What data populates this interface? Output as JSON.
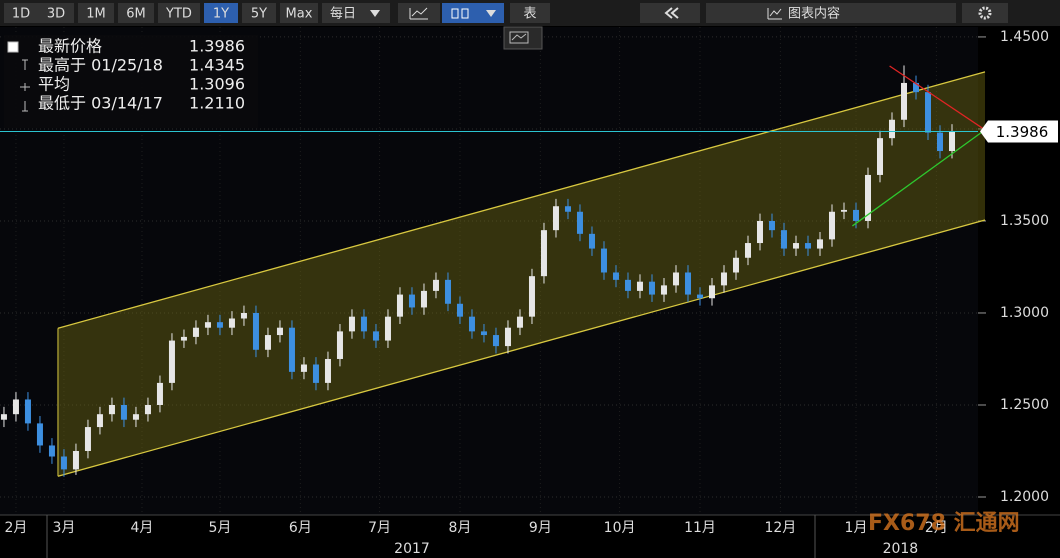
{
  "toolbar": {
    "ranges": [
      "1D",
      "3D",
      "1M",
      "6M",
      "YTD",
      "1Y",
      "5Y",
      "Max"
    ],
    "selected_range": 5,
    "frequency": "每日",
    "table": "表",
    "chart_content": "图表内容"
  },
  "legend": [
    {
      "label": "最新价格",
      "value": 1.3986
    },
    {
      "label": "最高于 01/25/18",
      "value": 1.4345
    },
    {
      "label": "平均",
      "value": 1.3096
    },
    {
      "label": "最低于 03/14/17",
      "value": 1.211,
      "value_label": "1.2110"
    }
  ],
  "watermark": "FX678 汇通网",
  "chart_data": {
    "type": "candlestick",
    "up_color": "#e6e6e6",
    "down_color": "#3d8fe0",
    "grid": true,
    "xlim": [
      -0.33,
      81.75
    ],
    "xticks": [
      {
        "value": 1,
        "label": "2月"
      },
      {
        "value": 5,
        "label": "3月"
      },
      {
        "value": 11.5,
        "label": "4月"
      },
      {
        "value": 18,
        "label": "5月"
      },
      {
        "value": 24.7,
        "label": "6月"
      },
      {
        "value": 31.3,
        "label": "7月"
      },
      {
        "value": 38,
        "label": "8月"
      },
      {
        "value": 44.7,
        "label": "9月"
      },
      {
        "value": 51.3,
        "label": "10月"
      },
      {
        "value": 58,
        "label": "11月"
      },
      {
        "value": 64.7,
        "label": "12月"
      },
      {
        "value": 71,
        "label": "1月"
      },
      {
        "value": 77.7,
        "label": "2月"
      }
    ],
    "year_ticks": [
      {
        "value": 34,
        "label": "2017"
      },
      {
        "value": 74.7,
        "label": "2018"
      }
    ],
    "ylim": [
      1.19,
      1.4554
    ],
    "yticks": [
      {
        "value": 1.2,
        "label": "1.2000"
      },
      {
        "value": 1.25,
        "label": "1.2500"
      },
      {
        "value": 1.3,
        "label": "1.3000"
      },
      {
        "value": 1.35,
        "label": "1.3500"
      },
      {
        "value": 1.4,
        "label": "1.4000"
      },
      {
        "value": 1.45,
        "label": "1.4500"
      }
    ],
    "open": [
      1.242,
      1.245,
      1.253,
      1.24,
      1.228,
      1.222,
      1.215,
      1.225,
      1.238,
      1.245,
      1.25,
      1.242,
      1.245,
      1.25,
      1.262,
      1.285,
      1.287,
      1.292,
      1.295,
      1.292,
      1.297,
      1.3,
      1.28,
      1.288,
      1.292,
      1.268,
      1.272,
      1.262,
      1.275,
      1.29,
      1.298,
      1.29,
      1.285,
      1.298,
      1.31,
      1.303,
      1.312,
      1.318,
      1.305,
      1.298,
      1.29,
      1.288,
      1.282,
      1.292,
      1.298,
      1.32,
      1.345,
      1.358,
      1.355,
      1.343,
      1.335,
      1.322,
      1.318,
      1.312,
      1.317,
      1.31,
      1.315,
      1.322,
      1.31,
      1.308,
      1.315,
      1.322,
      1.33,
      1.338,
      1.35,
      1.345,
      1.335,
      1.338,
      1.335,
      1.34,
      1.355,
      1.356,
      1.35,
      1.375,
      1.395,
      1.405,
      1.425,
      1.42,
      1.398,
      1.388
    ],
    "high": [
      1.249,
      1.257,
      1.257,
      1.244,
      1.232,
      1.226,
      1.229,
      1.242,
      1.249,
      1.254,
      1.254,
      1.249,
      1.254,
      1.266,
      1.289,
      1.291,
      1.296,
      1.299,
      1.299,
      1.301,
      1.304,
      1.304,
      1.292,
      1.296,
      1.296,
      1.276,
      1.276,
      1.279,
      1.294,
      1.302,
      1.302,
      1.294,
      1.302,
      1.314,
      1.314,
      1.316,
      1.322,
      1.322,
      1.309,
      1.302,
      1.294,
      1.292,
      1.296,
      1.302,
      1.324,
      1.349,
      1.362,
      1.362,
      1.359,
      1.347,
      1.339,
      1.326,
      1.322,
      1.321,
      1.321,
      1.319,
      1.326,
      1.326,
      1.314,
      1.319,
      1.326,
      1.334,
      1.342,
      1.354,
      1.354,
      1.349,
      1.342,
      1.342,
      1.344,
      1.359,
      1.36,
      1.36,
      1.379,
      1.399,
      1.409,
      1.4345,
      1.429,
      1.424,
      1.402,
      1.4026
    ],
    "low": [
      1.238,
      1.241,
      1.236,
      1.224,
      1.218,
      1.211,
      1.212,
      1.221,
      1.234,
      1.241,
      1.238,
      1.238,
      1.241,
      1.246,
      1.258,
      1.281,
      1.283,
      1.288,
      1.288,
      1.288,
      1.293,
      1.276,
      1.276,
      1.284,
      1.264,
      1.264,
      1.258,
      1.258,
      1.271,
      1.286,
      1.286,
      1.281,
      1.281,
      1.294,
      1.299,
      1.299,
      1.308,
      1.301,
      1.294,
      1.286,
      1.284,
      1.278,
      1.278,
      1.288,
      1.294,
      1.316,
      1.341,
      1.351,
      1.339,
      1.331,
      1.318,
      1.314,
      1.308,
      1.308,
      1.306,
      1.306,
      1.311,
      1.306,
      1.304,
      1.304,
      1.311,
      1.318,
      1.326,
      1.334,
      1.341,
      1.331,
      1.331,
      1.331,
      1.331,
      1.336,
      1.351,
      1.346,
      1.346,
      1.371,
      1.391,
      1.401,
      1.416,
      1.394,
      1.384,
      1.384
    ],
    "close": [
      1.245,
      1.253,
      1.24,
      1.228,
      1.222,
      1.215,
      1.225,
      1.238,
      1.245,
      1.25,
      1.242,
      1.245,
      1.25,
      1.262,
      1.285,
      1.287,
      1.292,
      1.295,
      1.292,
      1.297,
      1.3,
      1.28,
      1.288,
      1.292,
      1.268,
      1.272,
      1.262,
      1.275,
      1.29,
      1.298,
      1.29,
      1.285,
      1.298,
      1.31,
      1.303,
      1.312,
      1.318,
      1.305,
      1.298,
      1.29,
      1.288,
      1.282,
      1.292,
      1.298,
      1.32,
      1.345,
      1.358,
      1.355,
      1.343,
      1.335,
      1.322,
      1.318,
      1.312,
      1.317,
      1.31,
      1.315,
      1.322,
      1.31,
      1.308,
      1.315,
      1.322,
      1.33,
      1.338,
      1.35,
      1.345,
      1.335,
      1.338,
      1.335,
      1.34,
      1.355,
      1.356,
      1.35,
      1.375,
      1.395,
      1.405,
      1.425,
      1.42,
      1.398,
      1.388,
      1.3986
    ],
    "channel": {
      "color": "#d8c840",
      "fill": "rgba(120,112,20,0.42)",
      "x": [
        4.5,
        81.75
      ],
      "upper": [
        1.2917,
        1.431
      ],
      "lower": [
        1.2113,
        1.3505
      ]
    },
    "trendlines": [
      {
        "color": "#e02424",
        "x": [
          73.8,
          81.75
        ],
        "y": [
          1.4342,
          1.3995
        ]
      },
      {
        "color": "#2ec82e",
        "x": [
          70.7,
          81.75
        ],
        "y": [
          1.3473,
          1.3995
        ]
      }
    ],
    "last_line_color": "#2bc4d0"
  }
}
